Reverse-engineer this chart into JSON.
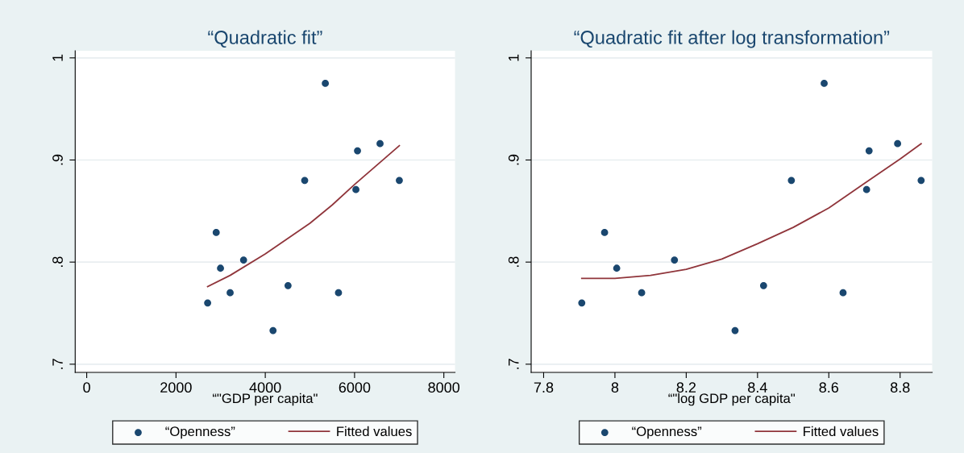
{
  "chart_data": [
    {
      "type": "scatter",
      "title": "“Quadratic fit”",
      "xlabel": "“\"GDP per capita\"",
      "xlim": [
        -258,
        8250
      ],
      "xticks": [
        0,
        2000,
        4000,
        6000,
        8000
      ],
      "ylim": [
        0.692,
        1.007
      ],
      "yticks": [
        {
          "value": 0.7,
          "label": ".7"
        },
        {
          "value": 0.8,
          "label": ".8"
        },
        {
          "value": 0.9,
          "label": ".9"
        },
        {
          "value": 1,
          "label": "1"
        }
      ],
      "grid": "y",
      "legend": "bottom",
      "series": [
        {
          "name": "“Openness”",
          "marker": "circle",
          "color": "#1a476f",
          "x": [
            2709,
            2901,
            2997,
            3213,
            3514,
            4174,
            4510,
            4883,
            5345,
            5640,
            6030,
            6066,
            6571,
            7003
          ],
          "values": [
            0.76,
            0.829,
            0.794,
            0.77,
            0.802,
            0.733,
            0.777,
            0.88,
            0.975,
            0.77,
            0.871,
            0.909,
            0.916,
            0.88
          ]
        },
        {
          "name": "Fitted values",
          "type": "line",
          "color": "#90353b",
          "x": [
            2709,
            3213,
            4000,
            4500,
            5000,
            5500,
            6000,
            6500,
            7003
          ],
          "values": [
            0.776,
            0.787,
            0.808,
            0.823,
            0.838,
            0.856,
            0.876,
            0.895,
            0.914
          ]
        }
      ]
    },
    {
      "type": "scatter",
      "title": "“Quadratic fit after log transformation”",
      "xlabel": "“\"log GDP per capita\"",
      "xlim": [
        7.765,
        8.89
      ],
      "xticks": [
        7.8,
        8,
        8.2,
        8.4,
        8.6,
        8.8
      ],
      "ylim": [
        0.692,
        1.007
      ],
      "yticks": [
        {
          "value": 0.7,
          "label": ".7"
        },
        {
          "value": 0.8,
          "label": ".8"
        },
        {
          "value": 0.9,
          "label": ".9"
        },
        {
          "value": 1,
          "label": "1"
        }
      ],
      "grid": "y",
      "legend": "bottom",
      "series": [
        {
          "name": "“Openness”",
          "marker": "circle",
          "color": "#1a476f",
          "x": [
            7.907,
            7.971,
            8.005,
            8.075,
            8.167,
            8.337,
            8.417,
            8.495,
            8.587,
            8.64,
            8.706,
            8.713,
            8.793,
            8.859
          ],
          "values": [
            0.76,
            0.829,
            0.794,
            0.77,
            0.802,
            0.733,
            0.777,
            0.88,
            0.975,
            0.77,
            0.871,
            0.909,
            0.916,
            0.88
          ]
        },
        {
          "name": "Fitted values",
          "type": "line",
          "color": "#90353b",
          "x": [
            7.907,
            8.0,
            8.1,
            8.2,
            8.3,
            8.4,
            8.5,
            8.6,
            8.7,
            8.8,
            8.859
          ],
          "values": [
            0.784,
            0.784,
            0.787,
            0.793,
            0.803,
            0.818,
            0.834,
            0.853,
            0.877,
            0.901,
            0.916
          ]
        }
      ]
    }
  ]
}
